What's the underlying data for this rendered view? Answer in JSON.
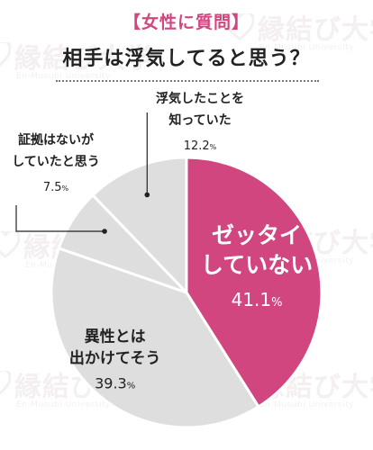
{
  "header": {
    "badge": "【女性に質問】",
    "title": "相手は浮気してると思う？"
  },
  "watermark": {
    "text": "縁結び大学",
    "subtext": "En-Musubi University"
  },
  "colors": {
    "accent": "#d24680",
    "slice_gray": "#dedede",
    "background": "#ffffff"
  },
  "chart_data": {
    "type": "pie",
    "title": "相手は浮気してると思う？",
    "start": "12 o'clock",
    "direction": "clockwise",
    "slices": [
      {
        "label_lines": [
          "ゼッタイ",
          "していない"
        ],
        "value": 41.1,
        "value_text": "41.1",
        "unit": "%",
        "color": "#d24680",
        "label_color": "#ffffff"
      },
      {
        "label_lines": [
          "異性とは",
          "出かけてそう"
        ],
        "value": 39.3,
        "value_text": "39.3",
        "unit": "%",
        "color": "#dedede",
        "label_color": "#222222"
      },
      {
        "label_lines": [
          "証拠はないが",
          "していたと思う"
        ],
        "value": 7.5,
        "value_text": "7.5",
        "unit": "%",
        "color": "#dedede",
        "label_color": "#222222"
      },
      {
        "label_lines": [
          "浮気したことを",
          "知っていた"
        ],
        "value": 12.2,
        "value_text": "12.2",
        "unit": "%",
        "color": "#dedede",
        "label_color": "#222222"
      }
    ]
  }
}
